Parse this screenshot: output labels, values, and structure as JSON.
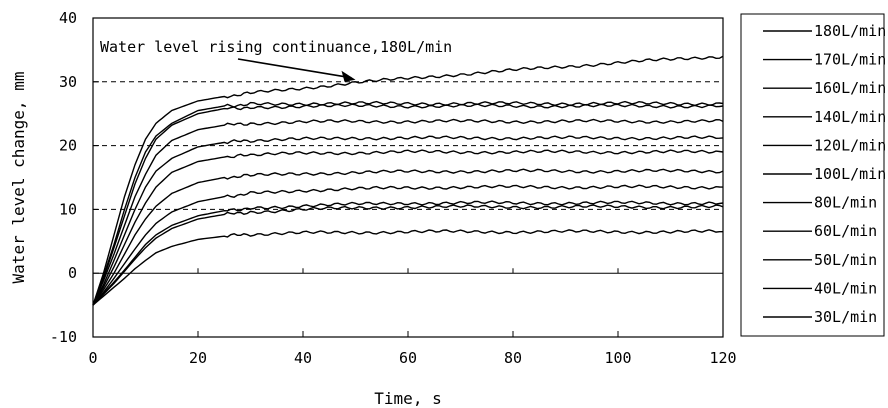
{
  "chart_data": {
    "type": "line",
    "xlabel": "Time, s",
    "ylabel": "Water level change, mm",
    "xlim": [
      0,
      120
    ],
    "ylim": [
      -10,
      40
    ],
    "xticks": [
      "0",
      "20",
      "40",
      "60",
      "80",
      "100",
      "120"
    ],
    "yticks": [
      "-10",
      "0",
      "10",
      "20",
      "30",
      "40"
    ],
    "dashed_grid_y": [
      10,
      20,
      30
    ],
    "legend_position": "right",
    "annotation": {
      "text": "Water level rising continuance,180L/min",
      "points_to": {
        "x": 50,
        "y": 30
      }
    },
    "x": [
      0,
      2,
      4,
      6,
      8,
      10,
      12,
      15,
      20,
      25,
      30,
      40,
      50,
      60,
      70,
      80,
      90,
      100,
      110,
      120
    ],
    "series": [
      {
        "name": "180L/min",
        "values": [
          -5,
          0,
          6,
          12,
          17,
          21,
          23.5,
          25.5,
          27,
          27.7,
          28.2,
          29,
          29.9,
          30.5,
          31.2,
          31.8,
          32.4,
          33,
          33.5,
          34
        ]
      },
      {
        "name": "170L/min",
        "values": [
          -5,
          -0.5,
          4.5,
          10,
          15,
          19,
          21.5,
          23.5,
          25.5,
          26.2,
          26.5,
          26.6,
          26.6,
          26.6,
          26.6,
          26.6,
          26.6,
          26.6,
          26.6,
          26.6
        ]
      },
      {
        "name": "160L/min",
        "values": [
          -5,
          -0.8,
          4,
          9,
          14,
          18,
          21,
          23.2,
          25,
          25.8,
          26,
          26.2,
          26.2,
          26.2,
          26.2,
          26.2,
          26.2,
          26.2,
          26.2,
          26.2
        ]
      },
      {
        "name": "140L/min",
        "values": [
          -5,
          -1.2,
          3,
          7.5,
          12,
          15.5,
          18.5,
          20.8,
          22.5,
          23.2,
          23.5,
          23.7,
          23.8,
          23.8,
          23.8,
          23.8,
          23.8,
          23.8,
          23.8,
          23.8
        ]
      },
      {
        "name": "120L/min",
        "values": [
          -5,
          -1.8,
          2,
          6,
          10,
          13.5,
          16,
          18,
          19.8,
          20.5,
          20.8,
          21,
          21.2,
          21.2,
          21.2,
          21.2,
          21.2,
          21.2,
          21.2,
          21.2
        ]
      },
      {
        "name": "100L/min",
        "values": [
          -5,
          -2.2,
          1,
          4.5,
          8,
          11,
          13.5,
          15.8,
          17.5,
          18.2,
          18.5,
          18.8,
          18.9,
          19,
          19,
          19,
          19,
          19,
          19,
          19
        ]
      },
      {
        "name": "80L/min",
        "values": [
          -5,
          -2.6,
          0,
          3,
          6,
          8.5,
          10.5,
          12.5,
          14.2,
          15,
          15.3,
          15.6,
          15.8,
          15.9,
          16,
          16,
          16,
          16,
          16,
          16
        ]
      },
      {
        "name": "60L/min",
        "values": [
          -5,
          -3,
          -0.8,
          1.5,
          3.8,
          6,
          7.8,
          9.6,
          11.2,
          12,
          12.5,
          13,
          13.2,
          13.4,
          13.5,
          13.5,
          13.5,
          13.5,
          13.5,
          13.5
        ]
      },
      {
        "name": "50L/min",
        "values": [
          -5,
          -3.2,
          -1.4,
          0.5,
          2.5,
          4.5,
          6,
          7.5,
          9,
          9.8,
          10.2,
          10.6,
          10.8,
          11,
          11,
          11,
          11,
          11,
          11,
          11
        ]
      },
      {
        "name": "40L/min",
        "values": [
          -5,
          -3.3,
          -1.6,
          0.3,
          2.2,
          4,
          5.5,
          7,
          8.5,
          9.2,
          9.6,
          10,
          10.2,
          10.4,
          10.4,
          10.4,
          10.4,
          10.4,
          10.4,
          10.4
        ]
      },
      {
        "name": "30L/min",
        "values": [
          -5,
          -3.6,
          -2.2,
          -0.8,
          0.7,
          2,
          3.2,
          4.2,
          5.3,
          5.8,
          6.1,
          6.3,
          6.4,
          6.5,
          6.5,
          6.5,
          6.5,
          6.5,
          6.5,
          6.5
        ]
      }
    ]
  }
}
